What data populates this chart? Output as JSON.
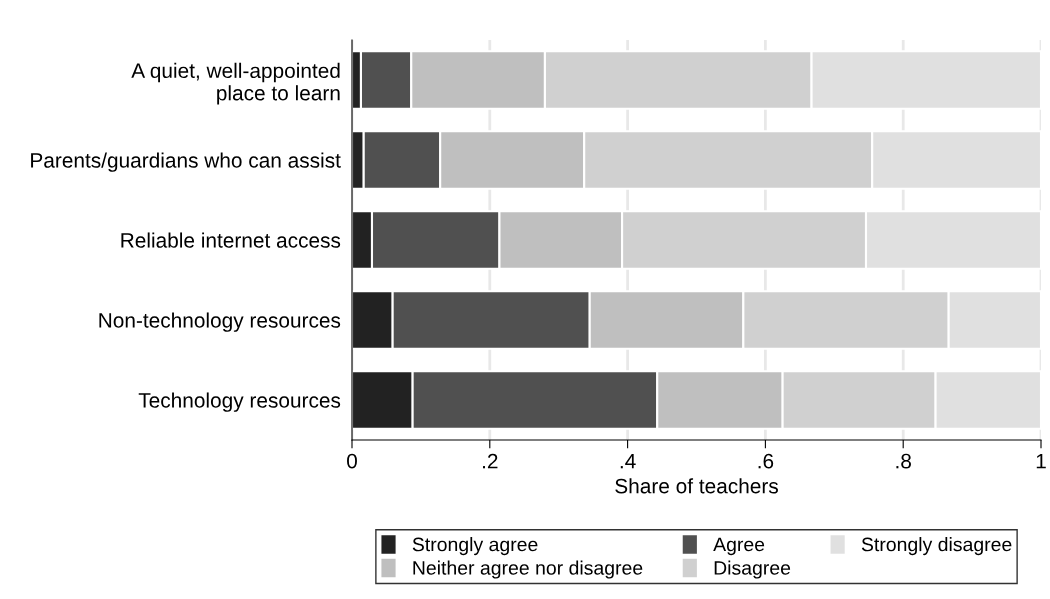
{
  "chart_data": {
    "type": "bar",
    "orientation": "horizontal",
    "stacked": true,
    "categories": [
      "A quiet, well-appointed\nplace to learn",
      "Parents/guardians who can assist",
      "Reliable internet access",
      "Non-technology resources",
      "Technology resources"
    ],
    "series": [
      {
        "name": "Strongly agree",
        "color": "#222222",
        "values": [
          0.013,
          0.017,
          0.029,
          0.059,
          0.088
        ]
      },
      {
        "name": "Agree",
        "color": "#505050",
        "values": [
          0.073,
          0.111,
          0.185,
          0.286,
          0.355
        ]
      },
      {
        "name": "Neither agree nor disagree",
        "color": "#bfbfbf",
        "values": [
          0.194,
          0.209,
          0.178,
          0.223,
          0.182
        ]
      },
      {
        "name": "Disagree",
        "color": "#d0d0d0",
        "values": [
          0.387,
          0.418,
          0.354,
          0.298,
          0.222
        ]
      },
      {
        "name": "Strongly disagree",
        "color": "#e0e0e0",
        "values": [
          0.333,
          0.245,
          0.254,
          0.134,
          0.153
        ]
      }
    ],
    "xlabel": "Share of teachers",
    "xlim": [
      0,
      1
    ],
    "xticks": [
      0,
      {
        "value": 0.2,
        "label": ".2"
      },
      {
        "value": 0.4,
        "label": ".4"
      },
      {
        "value": 0.6,
        "label": ".6"
      },
      {
        "value": 0.8,
        "label": ".8"
      },
      1
    ],
    "grid": "x",
    "legend": "bottom"
  }
}
